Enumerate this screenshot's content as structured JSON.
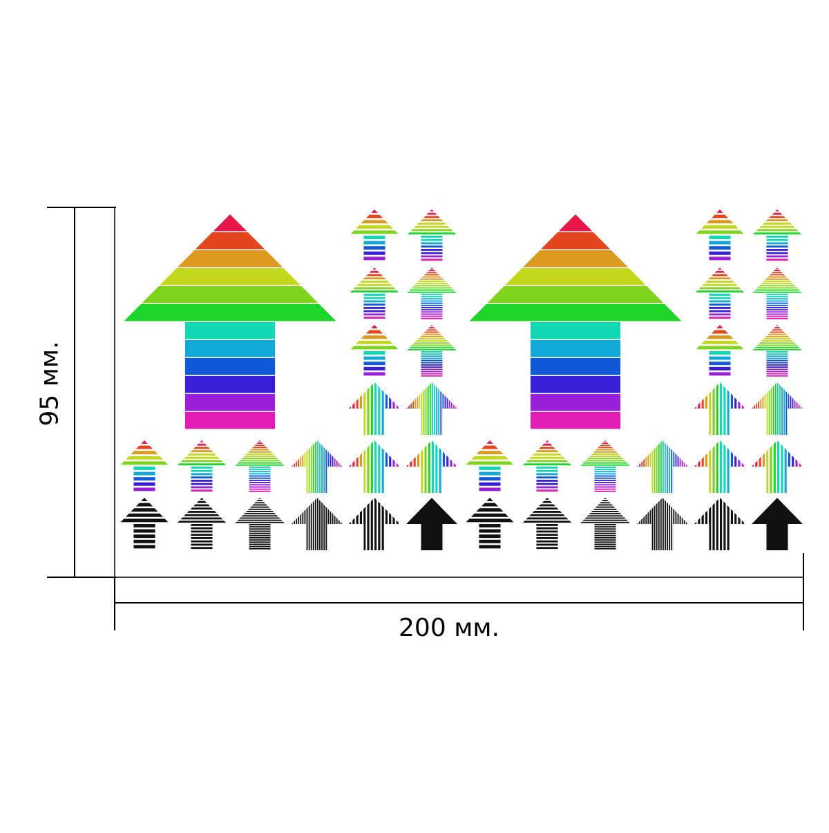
{
  "dimensions": {
    "width_label": "200 мм.",
    "height_label": "95 мм."
  },
  "palettes": {
    "rainbow": [
      "#e8174a",
      "#e3461e",
      "#dc9a1f",
      "#c2d81d",
      "#7ed31c",
      "#1ed62a",
      "#12d8b5",
      "#12a8d8",
      "#1259d8",
      "#3a1fd8",
      "#9a1fd8",
      "#e21cb4"
    ],
    "black": [
      "#111111"
    ]
  },
  "sticker_sheet": {
    "large_arrows": [
      {
        "style": "horizontal-stripes",
        "palette": "rainbow"
      },
      {
        "style": "horizontal-stripes",
        "palette": "rainbow"
      }
    ],
    "small_arrow_styles": [
      "horizontal-coarse",
      "horizontal-medium",
      "horizontal-fine",
      "vertical-fine",
      "vertical-coarse",
      "solid"
    ],
    "color_rows": 1,
    "black_rows": 1
  }
}
